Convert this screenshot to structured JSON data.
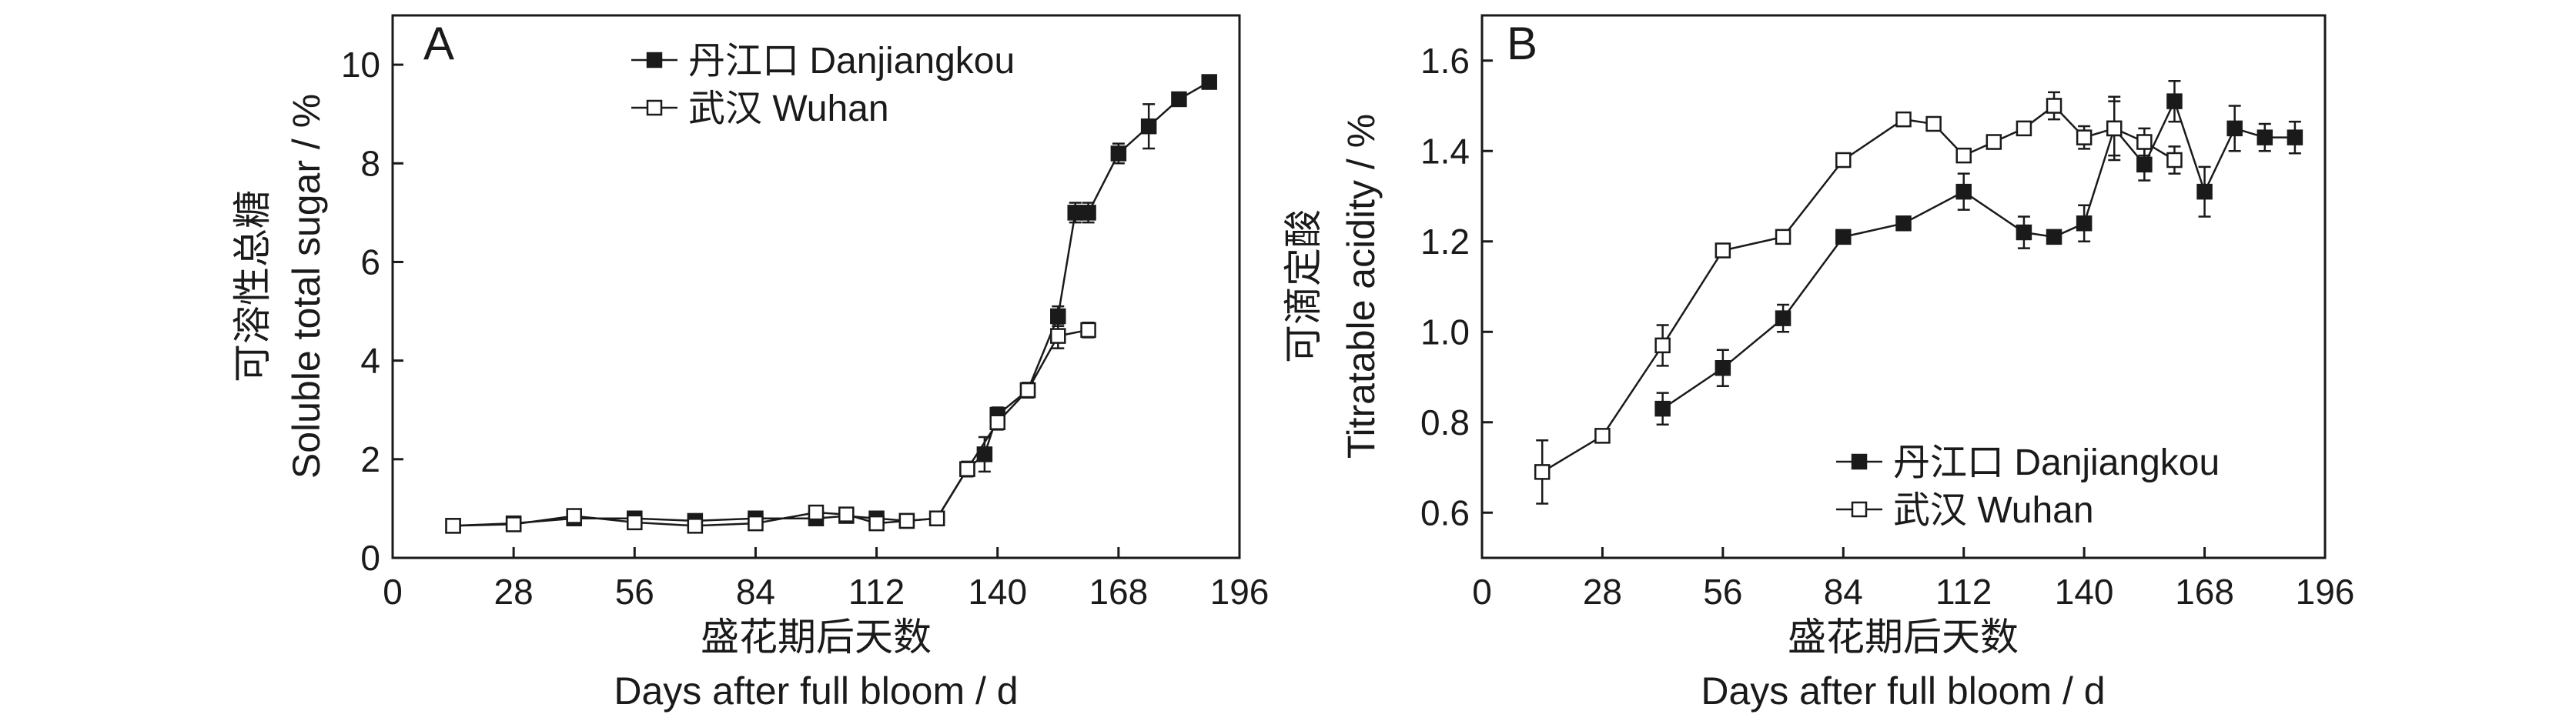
{
  "chart_data": [
    {
      "panel": "A",
      "type": "line",
      "ylabel_cn": "可溶性总糖",
      "ylabel": "Soluble total sugar / %",
      "xlabel_cn": "盛花期后天数",
      "xlabel": "Days after full bloom / d",
      "xlim": [
        0,
        196
      ],
      "ylim": [
        0,
        11
      ],
      "xticks": [
        "0",
        "28",
        "56",
        "84",
        "112",
        "140",
        "168",
        "196"
      ],
      "yticks": [
        "0",
        "2",
        "4",
        "6",
        "8",
        "10"
      ],
      "legend_position": "top-right",
      "series": [
        {
          "name": "丹江口 Danjiangkou",
          "marker": "filled-square",
          "x": [
            14,
            28,
            42,
            56,
            70,
            84,
            98,
            105,
            112,
            119,
            126,
            133,
            137,
            140,
            147,
            154,
            158,
            161,
            168,
            175,
            182,
            189
          ],
          "y": [
            0.65,
            0.7,
            0.8,
            0.8,
            0.75,
            0.8,
            0.8,
            0.85,
            0.8,
            0.75,
            0.8,
            1.8,
            2.1,
            2.9,
            3.4,
            4.9,
            7.0,
            7.0,
            8.2,
            8.75,
            9.3,
            9.65
          ],
          "err": [
            0.05,
            0.05,
            0.08,
            0.06,
            0.05,
            0.05,
            0.08,
            0.05,
            0.06,
            0.05,
            0.05,
            0.15,
            0.35,
            0.15,
            0.15,
            0.2,
            0.2,
            0.2,
            0.2,
            0.45,
            0.05,
            0.05
          ]
        },
        {
          "name": "武汉 Wuhan",
          "marker": "open-square",
          "x": [
            14,
            28,
            42,
            56,
            70,
            84,
            98,
            105,
            112,
            119,
            126,
            133,
            140,
            147,
            154,
            161
          ],
          "y": [
            0.65,
            0.68,
            0.85,
            0.72,
            0.65,
            0.7,
            0.92,
            0.88,
            0.7,
            0.75,
            0.8,
            1.8,
            2.75,
            3.4,
            4.5,
            4.62
          ],
          "err": [
            0.05,
            0.05,
            0.06,
            0.05,
            0.05,
            0.05,
            0.06,
            0.05,
            0.05,
            0.05,
            0.05,
            0.15,
            0.15,
            0.15,
            0.25,
            0.15
          ]
        }
      ]
    },
    {
      "panel": "B",
      "type": "line",
      "ylabel_cn": "可滴定酸",
      "ylabel": "Titratable acidity / %",
      "xlabel_cn": "盛花期后天数",
      "xlabel": "Days after full bloom / d",
      "xlim": [
        0,
        196
      ],
      "ylim": [
        0.5,
        1.7
      ],
      "xticks": [
        "0",
        "28",
        "56",
        "84",
        "112",
        "140",
        "168",
        "196"
      ],
      "yticks": [
        "0.6",
        "0.8",
        "1.0",
        "1.2",
        "1.4",
        "1.6"
      ],
      "legend_position": "bottom-right",
      "series": [
        {
          "name": "丹江口 Danjiangkou",
          "marker": "filled-square",
          "x": [
            42,
            56,
            70,
            84,
            98,
            112,
            126,
            133,
            140,
            147,
            154,
            161,
            168,
            175,
            182,
            189
          ],
          "y": [
            0.83,
            0.92,
            1.03,
            1.21,
            1.24,
            1.31,
            1.22,
            1.21,
            1.24,
            1.45,
            1.37,
            1.51,
            1.31,
            1.45,
            1.43,
            1.43
          ],
          "err": [
            0.035,
            0.04,
            0.03,
            0.015,
            0.01,
            0.04,
            0.035,
            0.01,
            0.04,
            0.06,
            0.035,
            0.045,
            0.055,
            0.05,
            0.03,
            0.035
          ]
        },
        {
          "name": "武汉 Wuhan",
          "marker": "open-square",
          "x": [
            14,
            28,
            42,
            56,
            70,
            84,
            98,
            105,
            112,
            119,
            126,
            133,
            140,
            147,
            154,
            161
          ],
          "y": [
            0.69,
            0.77,
            0.97,
            1.18,
            1.21,
            1.38,
            1.47,
            1.46,
            1.39,
            1.42,
            1.45,
            1.5,
            1.43,
            1.45,
            1.42,
            1.38
          ],
          "err": [
            0.07,
            0.01,
            0.045,
            0.01,
            0.015,
            0.015,
            0.015,
            0.01,
            0.01,
            0.015,
            0.015,
            0.03,
            0.025,
            0.07,
            0.03,
            0.03
          ]
        }
      ]
    }
  ]
}
